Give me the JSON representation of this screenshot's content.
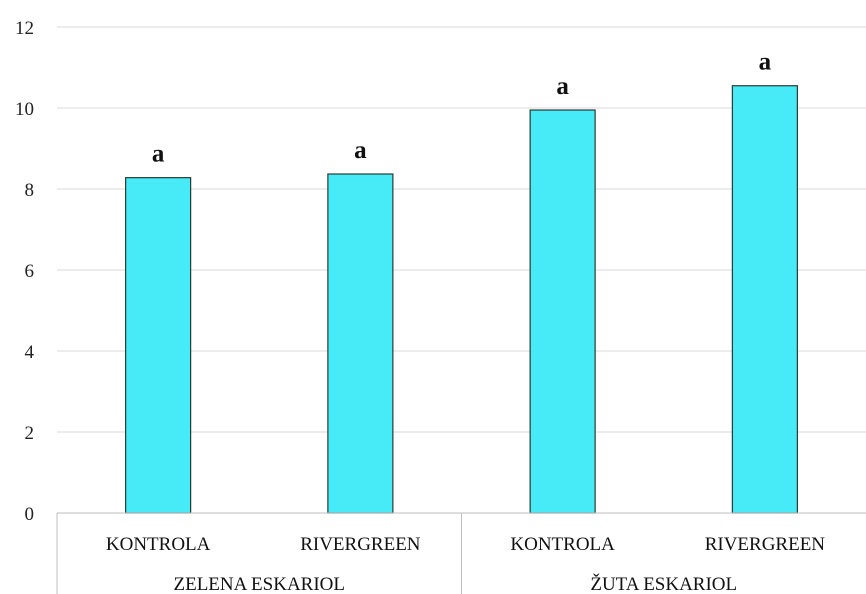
{
  "chart_data": {
    "type": "bar",
    "title": "",
    "xlabel": "",
    "ylabel": "",
    "ylim": [
      0,
      12
    ],
    "yticks": [
      0,
      2,
      4,
      6,
      8,
      10,
      12
    ],
    "grid": true,
    "legend": "none",
    "groups": [
      {
        "name": "ZELENA ESKARIOL",
        "span": 2
      },
      {
        "name": "ŽUTA ESKARIOL",
        "span": 2
      }
    ],
    "categories": [
      "KONTROLA",
      "RIVERGREEN",
      "KONTROLA",
      "RIVERGREEN"
    ],
    "values": [
      8.28,
      8.37,
      9.95,
      10.55
    ],
    "data_labels": [
      "a",
      "a",
      "a",
      "a"
    ],
    "colors": {
      "bar_fill": "#47ebf8",
      "bar_stroke": "#2b3a2f",
      "grid": "#d9d9d9",
      "axis": "#bfbfbf"
    }
  }
}
